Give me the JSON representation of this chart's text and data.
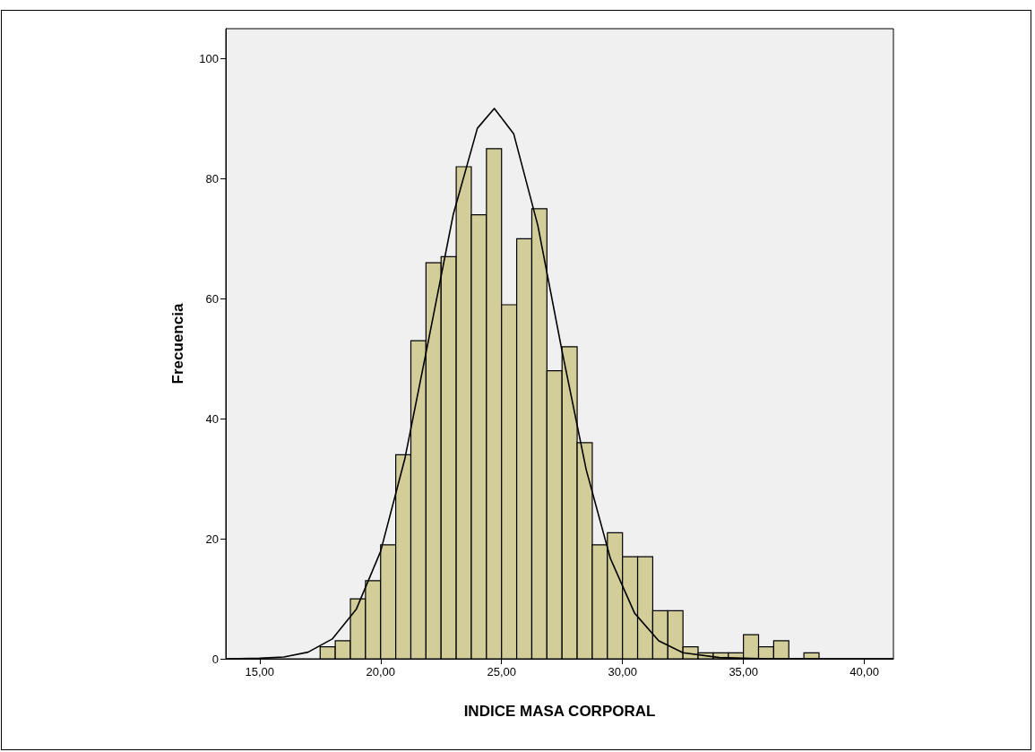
{
  "chart_data": {
    "type": "histogram",
    "xlabel": "INDICE MASA CORPORAL",
    "ylabel": "Frecuencia",
    "color": "#d3ce99",
    "bins": [
      17.5,
      18.125,
      18.75,
      19.375,
      20,
      20.625,
      21.25,
      21.875,
      22.5,
      23.125,
      23.75,
      24.375,
      25,
      25.625,
      26.25,
      26.875,
      27.5,
      28.125,
      28.75,
      29.375,
      30,
      30.625,
      31.25,
      31.875,
      32.5,
      33.125,
      33.75,
      34.375,
      35,
      35.625,
      36.25,
      36.875,
      37.5,
      38.125
    ],
    "values": [
      2,
      3,
      10,
      13,
      19,
      34,
      53,
      66,
      67,
      82,
      74,
      85,
      59,
      70,
      75,
      48,
      52,
      36,
      19,
      21,
      17,
      17,
      8,
      8,
      2,
      1,
      1,
      1,
      4,
      2,
      3,
      0,
      1
    ],
    "series": [
      {
        "type": "line",
        "color": "#000000",
        "marker": "none",
        "x": [
          13.6,
          15,
          16,
          17,
          18,
          19,
          20,
          21,
          22,
          23,
          24,
          24.7,
          25.5,
          26.5,
          27.5,
          28.5,
          29.5,
          30.5,
          31.5,
          32.5,
          34,
          36,
          41.2
        ],
        "values": [
          0,
          0.1,
          0.3,
          1.1,
          3.3,
          8.3,
          17.9,
          33.3,
          53.5,
          74,
          88.4,
          91.7,
          87.5,
          72.2,
          51.3,
          31.5,
          16.7,
          7.6,
          3,
          1,
          0.2,
          0,
          0
        ]
      }
    ],
    "xlim": [
      13.6,
      41.2
    ],
    "ylim": [
      0,
      105
    ],
    "xticks": [
      {
        "value": 15,
        "label": "15,00"
      },
      {
        "value": 20,
        "label": "20,00"
      },
      {
        "value": 25,
        "label": "25,00"
      },
      {
        "value": 30,
        "label": "30,00"
      },
      {
        "value": 35,
        "label": "35,00"
      },
      {
        "value": 40,
        "label": "40,00"
      }
    ],
    "yticks": [
      0,
      20,
      40,
      60,
      80,
      100
    ]
  }
}
